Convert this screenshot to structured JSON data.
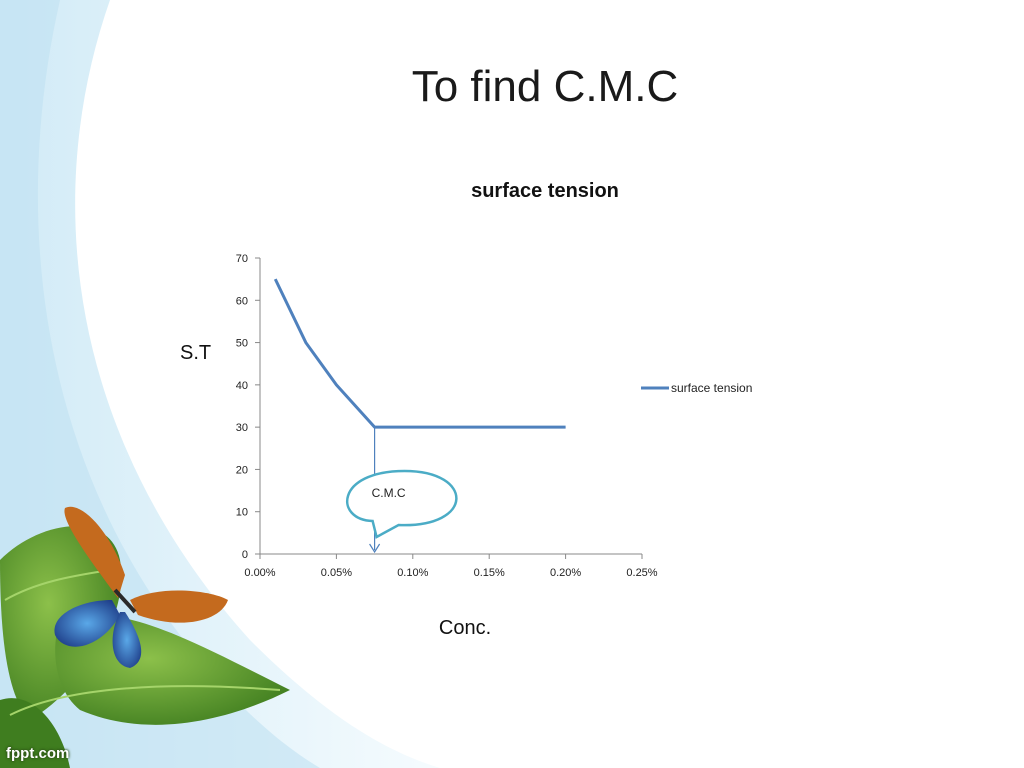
{
  "slide": {
    "title": "To find C.M.C",
    "watermark": "fppt.com"
  },
  "colors": {
    "series_line": "#4f81bd",
    "annotation_callout": "#4bacc6",
    "leaf_green": "#4f8d2a",
    "background_wave": "#dceff8"
  },
  "chart_data": {
    "type": "line",
    "title": "surface tension",
    "xlabel": "Conc.",
    "ylabel": "S.T",
    "xlim": [
      0,
      0.0025
    ],
    "ylim": [
      0,
      70
    ],
    "x_ticks": [
      "0.00%",
      "0.05%",
      "0.10%",
      "0.15%",
      "0.20%",
      "0.25%"
    ],
    "y_ticks": [
      "0",
      "10",
      "20",
      "30",
      "40",
      "50",
      "60",
      "70"
    ],
    "grid": false,
    "legend_position": "right",
    "series": [
      {
        "name": "surface tension",
        "x": [
          0.0001,
          0.0003,
          0.0005,
          0.00075,
          0.001,
          0.002
        ],
        "y": [
          65,
          50,
          40,
          30,
          30,
          30
        ]
      }
    ],
    "annotation": {
      "text": "C.M.C",
      "x": 0.00075,
      "y": 30
    }
  }
}
